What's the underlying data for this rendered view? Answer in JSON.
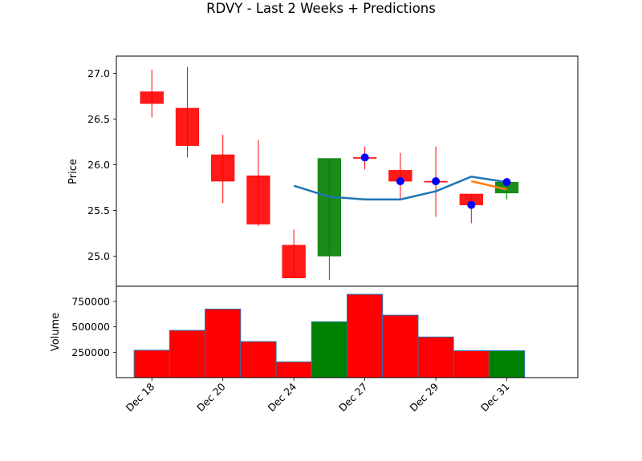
{
  "chart_data": {
    "type": "candlestick",
    "title": "RDVY - Last 2 Weeks + Predictions",
    "colors": {
      "up": "#008000",
      "down": "#ff0000",
      "prediction_line": "#1f77b4",
      "prediction_tail": "#ff7f0e",
      "markers": "#0000ff",
      "volume_edge": "#1f77b4"
    },
    "price_panel": {
      "ylabel": "Price",
      "ylim": [
        24.67,
        27.19
      ],
      "yticks": [
        25.0,
        25.5,
        26.0,
        26.5,
        27.0
      ],
      "ytick_labels": [
        "25.0",
        "25.5",
        "26.0",
        "26.5",
        "27.0"
      ]
    },
    "volume_panel": {
      "ylabel": "Volume",
      "ylim": [
        0,
        900000
      ],
      "yticks": [
        250000,
        500000,
        750000
      ],
      "ytick_labels": [
        "250000",
        "500000",
        "750000"
      ]
    },
    "xlim": [
      -1,
      12
    ],
    "x_ticks": [
      {
        "pos": 0,
        "label": "Dec 18"
      },
      {
        "pos": 2,
        "label": "Dec 20"
      },
      {
        "pos": 4,
        "label": "Dec 24"
      },
      {
        "pos": 6,
        "label": "Dec 27"
      },
      {
        "pos": 8,
        "label": "Dec 29"
      },
      {
        "pos": 10,
        "label": "Dec 31"
      }
    ],
    "candles": [
      {
        "x": 0,
        "open": 26.8,
        "close": 26.67,
        "high": 27.04,
        "low": 26.52,
        "volume": 270000
      },
      {
        "x": 1,
        "open": 26.62,
        "close": 26.21,
        "high": 27.07,
        "low": 26.08,
        "volume": 465000
      },
      {
        "x": 2,
        "open": 26.11,
        "close": 25.82,
        "high": 26.33,
        "low": 25.58,
        "volume": 675000
      },
      {
        "x": 3,
        "open": 25.88,
        "close": 25.35,
        "high": 26.27,
        "low": 25.33,
        "volume": 355000
      },
      {
        "x": 4,
        "open": 25.12,
        "close": 24.76,
        "high": 25.29,
        "low": 24.76,
        "volume": 155000
      },
      {
        "x": 5,
        "open": 25.0,
        "close": 26.07,
        "high": 26.07,
        "low": 24.74,
        "volume": 550000
      },
      {
        "x": 6,
        "open": 26.08,
        "close": 26.07,
        "high": 26.2,
        "low": 25.95,
        "volume": 820000
      },
      {
        "x": 7,
        "open": 25.94,
        "close": 25.82,
        "high": 26.13,
        "low": 25.63,
        "volume": 615000
      },
      {
        "x": 8,
        "open": 25.82,
        "close": 25.81,
        "high": 26.2,
        "low": 25.43,
        "volume": 400000
      },
      {
        "x": 9,
        "open": 25.68,
        "close": 25.56,
        "high": 25.68,
        "low": 25.36,
        "volume": 265000
      },
      {
        "x": 10,
        "open": 25.69,
        "close": 25.81,
        "high": 25.84,
        "low": 25.62,
        "volume": 265000
      }
    ],
    "prediction_line": {
      "x": [
        4,
        5,
        6,
        7,
        8,
        9,
        10
      ],
      "y": [
        25.77,
        25.65,
        25.62,
        25.62,
        25.71,
        25.87,
        25.81
      ]
    },
    "prediction_tail": {
      "x": [
        9,
        10
      ],
      "y": [
        25.82,
        25.73
      ]
    },
    "markers": [
      {
        "x": 6,
        "y": 26.08
      },
      {
        "x": 7,
        "y": 25.82
      },
      {
        "x": 8,
        "y": 25.82
      },
      {
        "x": 9,
        "y": 25.56
      },
      {
        "x": 10,
        "y": 25.81
      }
    ]
  }
}
